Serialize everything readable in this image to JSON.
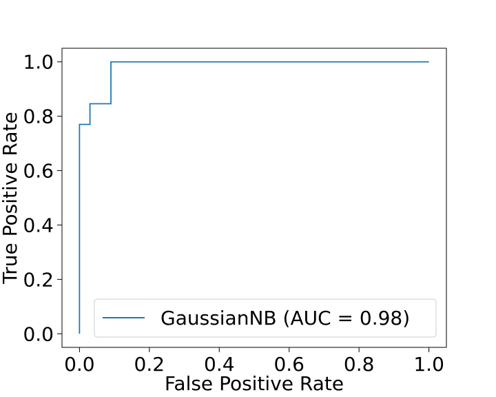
{
  "chart_data": {
    "type": "line",
    "xlabel": "False Positive Rate",
    "ylabel": "True Positive Rate",
    "xlim": [
      -0.05,
      1.05
    ],
    "ylim": [
      -0.05,
      1.05
    ],
    "xticks": [
      0.0,
      0.2,
      0.4,
      0.6,
      0.8,
      1.0
    ],
    "yticks": [
      0.0,
      0.2,
      0.4,
      0.6,
      0.8,
      1.0
    ],
    "xtick_labels": [
      "0.0",
      "0.2",
      "0.4",
      "0.6",
      "0.8",
      "1.0"
    ],
    "ytick_labels": [
      "0.0",
      "0.2",
      "0.4",
      "0.6",
      "0.8",
      "1.0"
    ],
    "grid": false,
    "legend_position": "lower-right",
    "series": [
      {
        "name": "GaussianNB (AUC = 0.98)",
        "color": "#1f77b4",
        "x": [
          0.0,
          0.0,
          0.03,
          0.03,
          0.09,
          0.09,
          1.0
        ],
        "y": [
          0.0,
          0.77,
          0.77,
          0.846,
          0.846,
          1.0,
          1.0
        ]
      }
    ]
  }
}
